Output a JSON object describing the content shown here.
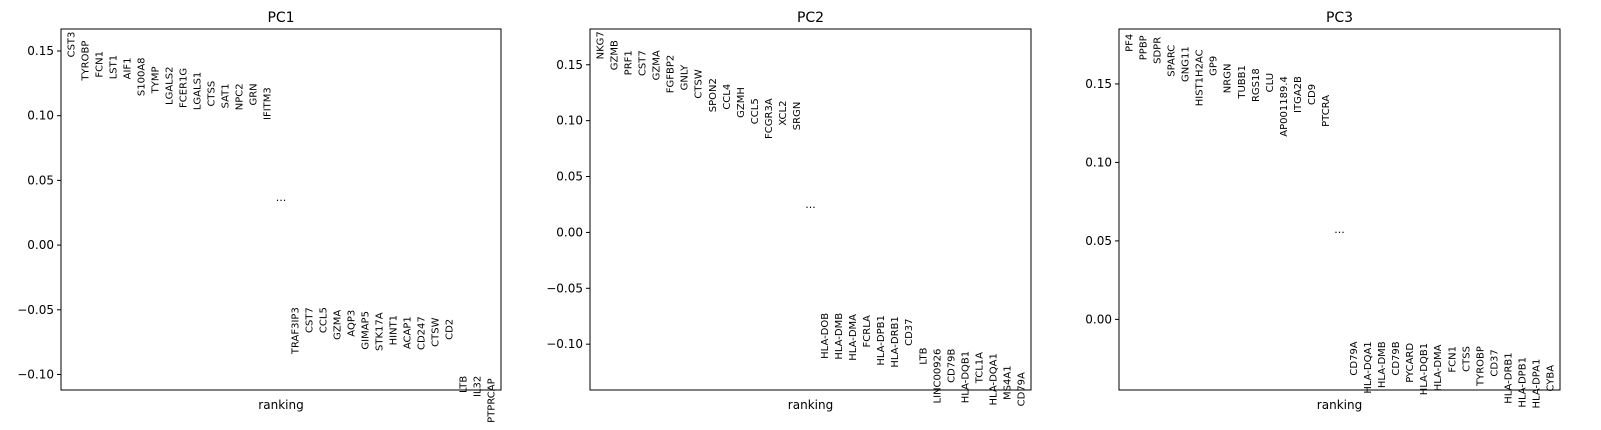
{
  "chart_data": [
    {
      "type": "scatter",
      "title": "PC1",
      "xlabel": "ranking",
      "ylim": [
        -0.112,
        0.167
      ],
      "yticks": [
        0.15,
        0.1,
        0.05,
        0.0,
        -0.05,
        -0.1
      ],
      "ytick_labels": [
        "0.15",
        "0.10",
        "0.05",
        "0.00",
        "−0.05",
        "−0.10"
      ],
      "ellipsis_label": "...",
      "ellipsis_y": 0.034,
      "top_genes": [
        {
          "gene": "CST3",
          "y": 0.165
        },
        {
          "gene": "TYROBP",
          "y": 0.158
        },
        {
          "gene": "FCN1",
          "y": 0.15
        },
        {
          "gene": "LST1",
          "y": 0.147
        },
        {
          "gene": "AIF1",
          "y": 0.145
        },
        {
          "gene": "S100A8",
          "y": 0.145
        },
        {
          "gene": "TYMP",
          "y": 0.138
        },
        {
          "gene": "LGALS2",
          "y": 0.138
        },
        {
          "gene": "FCER1G",
          "y": 0.137
        },
        {
          "gene": "LGALS1",
          "y": 0.134
        },
        {
          "gene": "CTSS",
          "y": 0.127
        },
        {
          "gene": "SAT1",
          "y": 0.125
        },
        {
          "gene": "NPC2",
          "y": 0.125
        },
        {
          "gene": "GRN",
          "y": 0.125
        },
        {
          "gene": "IFITM3",
          "y": 0.122
        }
      ],
      "bottom_genes": [
        {
          "gene": "TRAF3IP3",
          "y": -0.048
        },
        {
          "gene": "CST7",
          "y": -0.048
        },
        {
          "gene": "CCL5",
          "y": -0.048
        },
        {
          "gene": "GZMA",
          "y": -0.05
        },
        {
          "gene": "AQP3",
          "y": -0.05
        },
        {
          "gene": "GIMAP5",
          "y": -0.051
        },
        {
          "gene": "STK17A",
          "y": -0.052
        },
        {
          "gene": "HINT1",
          "y": -0.054
        },
        {
          "gene": "ACAP1",
          "y": -0.055
        },
        {
          "gene": "CD247",
          "y": -0.055
        },
        {
          "gene": "CTSW",
          "y": -0.056
        },
        {
          "gene": "CD2",
          "y": -0.057
        },
        {
          "gene": "LTB",
          "y": -0.101
        },
        {
          "gene": "IL32",
          "y": -0.101
        },
        {
          "gene": "PTPRCAP",
          "y": -0.103
        }
      ]
    },
    {
      "type": "scatter",
      "title": "PC2",
      "xlabel": "ranking",
      "ylim": [
        -0.141,
        0.182
      ],
      "yticks": [
        0.15,
        0.1,
        0.05,
        0.0,
        -0.05,
        -0.1
      ],
      "ytick_labels": [
        "0.15",
        "0.10",
        "0.05",
        "0.00",
        "−0.05",
        "−0.10"
      ],
      "ellipsis_label": "...",
      "ellipsis_y": 0.022,
      "top_genes": [
        {
          "gene": "NKG7",
          "y": 0.18
        },
        {
          "gene": "GZMB",
          "y": 0.172
        },
        {
          "gene": "PRF1",
          "y": 0.163
        },
        {
          "gene": "CST7",
          "y": 0.163
        },
        {
          "gene": "GZMA",
          "y": 0.163
        },
        {
          "gene": "FGFBP2",
          "y": 0.159
        },
        {
          "gene": "GNLY",
          "y": 0.15
        },
        {
          "gene": "CTSW",
          "y": 0.146
        },
        {
          "gene": "SPON2",
          "y": 0.138
        },
        {
          "gene": "CCL4",
          "y": 0.133
        },
        {
          "gene": "GZMH",
          "y": 0.13
        },
        {
          "gene": "CCL5",
          "y": 0.12
        },
        {
          "gene": "FCGR3A",
          "y": 0.12
        },
        {
          "gene": "XCL2",
          "y": 0.118
        },
        {
          "gene": "SRGN",
          "y": 0.117
        }
      ],
      "bottom_genes": [
        {
          "gene": "HLA-DOB",
          "y": -0.072
        },
        {
          "gene": "HLA-DMB",
          "y": -0.072
        },
        {
          "gene": "HLA-DMA",
          "y": -0.073
        },
        {
          "gene": "FCRLA",
          "y": -0.074
        },
        {
          "gene": "HLA-DPB1",
          "y": -0.074
        },
        {
          "gene": "HLA-DRB1",
          "y": -0.075
        },
        {
          "gene": "CD37",
          "y": -0.077
        },
        {
          "gene": "LTB",
          "y": -0.103
        },
        {
          "gene": "LINC00926",
          "y": -0.104
        },
        {
          "gene": "CD79B",
          "y": -0.104
        },
        {
          "gene": "HLA-DQB1",
          "y": -0.106
        },
        {
          "gene": "TCL1A",
          "y": -0.107
        },
        {
          "gene": "HLA-DQA1",
          "y": -0.108
        },
        {
          "gene": "MS4A1",
          "y": -0.119
        },
        {
          "gene": "CD79A",
          "y": -0.125
        }
      ]
    },
    {
      "type": "scatter",
      "title": "PC3",
      "xlabel": "ranking",
      "ylim": [
        -0.045,
        0.185
      ],
      "yticks": [
        0.15,
        0.1,
        0.05,
        0.0
      ],
      "ytick_labels": [
        "0.15",
        "0.10",
        "0.05",
        "0.00"
      ],
      "ellipsis_label": "...",
      "ellipsis_y": 0.055,
      "top_genes": [
        {
          "gene": "PF4",
          "y": 0.182
        },
        {
          "gene": "PPBP",
          "y": 0.181
        },
        {
          "gene": "SDPR",
          "y": 0.18
        },
        {
          "gene": "SPARC",
          "y": 0.175
        },
        {
          "gene": "GNG11",
          "y": 0.174
        },
        {
          "gene": "HIST1H2AC",
          "y": 0.172
        },
        {
          "gene": "GP9",
          "y": 0.168
        },
        {
          "gene": "NRGN",
          "y": 0.163
        },
        {
          "gene": "TUBB1",
          "y": 0.162
        },
        {
          "gene": "RGS18",
          "y": 0.16
        },
        {
          "gene": "CLU",
          "y": 0.157
        },
        {
          "gene": "AP001189.4",
          "y": 0.155
        },
        {
          "gene": "ITGA2B",
          "y": 0.155
        },
        {
          "gene": "CD9",
          "y": 0.15
        },
        {
          "gene": "PTCRA",
          "y": 0.143
        }
      ],
      "bottom_genes": [
        {
          "gene": "CD79A",
          "y": -0.014
        },
        {
          "gene": "HLA-DQA1",
          "y": -0.014
        },
        {
          "gene": "HLA-DMB",
          "y": -0.014
        },
        {
          "gene": "CD79B",
          "y": -0.014
        },
        {
          "gene": "PYCARD",
          "y": -0.015
        },
        {
          "gene": "HLA-DQB1",
          "y": -0.015
        },
        {
          "gene": "HLA-DMA",
          "y": -0.016
        },
        {
          "gene": "FCN1",
          "y": -0.017
        },
        {
          "gene": "CTSS",
          "y": -0.017
        },
        {
          "gene": "TYROBP",
          "y": -0.017
        },
        {
          "gene": "CD37",
          "y": -0.019
        },
        {
          "gene": "HLA-DRB1",
          "y": -0.021
        },
        {
          "gene": "HLA-DPB1",
          "y": -0.024
        },
        {
          "gene": "HLA-DPA1",
          "y": -0.025
        },
        {
          "gene": "CYBA",
          "y": -0.029
        }
      ]
    }
  ]
}
